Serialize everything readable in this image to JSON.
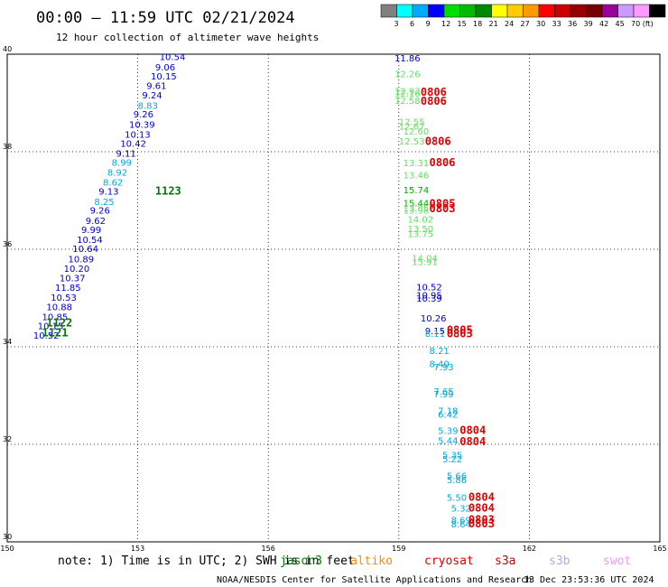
{
  "title": "00:00 — 11:59 UTC 02/21/2024",
  "subtitle": "12 hour collection of altimeter wave heights",
  "credit": "NOAA/NESDIS Center for Satellite Applications and Research",
  "generated": "13 Dec 23:53:36 UTC 2024",
  "note": "note: 1) Time is in UTC; 2) SWH is in feet",
  "satellites": [
    {
      "name": "jason3",
      "color": "#007700"
    },
    {
      "name": "altiko",
      "color": "#ff8800"
    },
    {
      "name": "cryosat",
      "color": "#dd0000"
    },
    {
      "name": "s3a",
      "color": "#cc0000"
    },
    {
      "name": "s3b",
      "color": "#b0a8ee"
    },
    {
      "name": "swot",
      "color": "#ee99ee"
    }
  ],
  "colorbar": {
    "colors": [
      "#808080",
      "#00ffff",
      "#00aaff",
      "#0000ff",
      "#00dd00",
      "#00bb00",
      "#008800",
      "#ffff00",
      "#ffcc00",
      "#ff9900",
      "#ff0000",
      "#cc0000",
      "#990000",
      "#770000",
      "#990099",
      "#cc99ff",
      "#ff99ff",
      "#000000"
    ],
    "labels": [
      "3",
      "6",
      "9",
      "12",
      "15",
      "18",
      "21",
      "24",
      "27",
      "30",
      "33",
      "36",
      "39",
      "42",
      "45",
      "70 (ft)"
    ]
  },
  "chart_data": {
    "type": "scatter",
    "title": "00:00 — 11:59 UTC 02/21/2024",
    "subtitle": "12 hour collection of altimeter wave heights",
    "xlim": [
      150,
      165
    ],
    "ylim": [
      30,
      40
    ],
    "xticks": [
      "150",
      "153",
      "156",
      "159",
      "162",
      "165"
    ],
    "yticks": [
      "30",
      "32",
      "34",
      "36",
      "38",
      "40"
    ],
    "grid": true,
    "points": [
      {
        "lon": 153.5,
        "lat": 39.88,
        "v": "10.54",
        "c": "#0000cc"
      },
      {
        "lon": 153.4,
        "lat": 39.67,
        "v": "9.06",
        "c": "#0000cc"
      },
      {
        "lon": 153.3,
        "lat": 39.48,
        "v": "10.15",
        "c": "#0000cc"
      },
      {
        "lon": 153.2,
        "lat": 39.29,
        "v": "9.61",
        "c": "#0000cc"
      },
      {
        "lon": 153.1,
        "lat": 39.09,
        "v": "9.24",
        "c": "#0000cc"
      },
      {
        "lon": 153.0,
        "lat": 38.88,
        "v": "8.83",
        "c": "#00aadd"
      },
      {
        "lon": 152.9,
        "lat": 38.7,
        "v": "9.26",
        "c": "#0000cc"
      },
      {
        "lon": 152.8,
        "lat": 38.49,
        "v": "10.39",
        "c": "#0000cc"
      },
      {
        "lon": 152.7,
        "lat": 38.29,
        "v": "10.13",
        "c": "#0000cc"
      },
      {
        "lon": 152.6,
        "lat": 38.1,
        "v": "10.42",
        "c": "#0000cc"
      },
      {
        "lon": 152.5,
        "lat": 37.9,
        "v": "9.11",
        "c": "#0000cc"
      },
      {
        "lon": 152.4,
        "lat": 37.71,
        "v": "8.99",
        "c": "#00aadd"
      },
      {
        "lon": 152.3,
        "lat": 37.51,
        "v": "8.92",
        "c": "#00aadd"
      },
      {
        "lon": 152.2,
        "lat": 37.31,
        "v": "8.62",
        "c": "#00aadd"
      },
      {
        "lon": 152.1,
        "lat": 37.12,
        "v": "9.13",
        "c": "#0000cc"
      },
      {
        "lon": 152.0,
        "lat": 36.91,
        "v": "8.25",
        "c": "#00aadd"
      },
      {
        "lon": 151.9,
        "lat": 36.73,
        "v": "9.26",
        "c": "#0000cc"
      },
      {
        "lon": 151.8,
        "lat": 36.52,
        "v": "9.62",
        "c": "#0000cc"
      },
      {
        "lon": 151.7,
        "lat": 36.33,
        "v": "9.99",
        "c": "#0000cc"
      },
      {
        "lon": 151.6,
        "lat": 36.13,
        "v": "10.54",
        "c": "#0000cc"
      },
      {
        "lon": 151.5,
        "lat": 35.94,
        "v": "10.64",
        "c": "#0000cc"
      },
      {
        "lon": 151.4,
        "lat": 35.73,
        "v": "10.89",
        "c": "#0000cc"
      },
      {
        "lon": 151.3,
        "lat": 35.54,
        "v": "10.20",
        "c": "#0000cc"
      },
      {
        "lon": 151.2,
        "lat": 35.34,
        "v": "10.37",
        "c": "#0000cc"
      },
      {
        "lon": 151.1,
        "lat": 35.15,
        "v": "11.85",
        "c": "#0000cc"
      },
      {
        "lon": 151.0,
        "lat": 34.94,
        "v": "10.53",
        "c": "#0000cc"
      },
      {
        "lon": 150.9,
        "lat": 34.75,
        "v": "10.88",
        "c": "#0000cc"
      },
      {
        "lon": 150.8,
        "lat": 34.55,
        "v": "10.85",
        "c": "#0000cc"
      },
      {
        "lon": 150.7,
        "lat": 34.36,
        "v": "10.15",
        "c": "#0000cc"
      },
      {
        "lon": 150.6,
        "lat": 34.17,
        "v": "10.52",
        "c": "#0000cc"
      },
      {
        "lon": 158.9,
        "lat": 39.85,
        "v": "11.86",
        "c": "#0000cc"
      },
      {
        "lon": 158.9,
        "lat": 39.53,
        "v": "12.26",
        "c": "#66dd66"
      },
      {
        "lon": 158.9,
        "lat": 39.18,
        "v": "12.93",
        "c": "#66dd66"
      },
      {
        "lon": 158.9,
        "lat": 39.13,
        "v": "12.16",
        "c": "#66dd66"
      },
      {
        "lon": 158.9,
        "lat": 38.98,
        "v": "12.58",
        "c": "#66dd66"
      },
      {
        "lon": 159.0,
        "lat": 38.55,
        "v": "12.55",
        "c": "#66dd66"
      },
      {
        "lon": 159.0,
        "lat": 38.45,
        "v": "12.67",
        "c": "#66dd66"
      },
      {
        "lon": 159.1,
        "lat": 38.35,
        "v": "12.60",
        "c": "#66dd66"
      },
      {
        "lon": 159.0,
        "lat": 38.15,
        "v": "12.53",
        "c": "#66dd66"
      },
      {
        "lon": 159.1,
        "lat": 37.7,
        "v": "13.31",
        "c": "#66dd66"
      },
      {
        "lon": 159.1,
        "lat": 37.45,
        "v": "13.46",
        "c": "#66dd66"
      },
      {
        "lon": 159.1,
        "lat": 37.15,
        "v": "15.74",
        "c": "#00aa00"
      },
      {
        "lon": 159.1,
        "lat": 36.88,
        "v": "15.44",
        "c": "#00aa00"
      },
      {
        "lon": 159.1,
        "lat": 36.78,
        "v": "13.85",
        "c": "#66dd66"
      },
      {
        "lon": 159.1,
        "lat": 36.73,
        "v": "13.98",
        "c": "#66dd66"
      },
      {
        "lon": 159.2,
        "lat": 36.55,
        "v": "14.02",
        "c": "#66dd66"
      },
      {
        "lon": 159.2,
        "lat": 36.35,
        "v": "13.50",
        "c": "#66dd66"
      },
      {
        "lon": 159.2,
        "lat": 36.25,
        "v": "13.75",
        "c": "#66dd66"
      },
      {
        "lon": 159.3,
        "lat": 35.75,
        "v": "14.04",
        "c": "#66dd66"
      },
      {
        "lon": 159.3,
        "lat": 35.68,
        "v": "15.91",
        "c": "#66dd66"
      },
      {
        "lon": 159.4,
        "lat": 35.16,
        "v": "10.52",
        "c": "#0000cc"
      },
      {
        "lon": 159.4,
        "lat": 34.99,
        "v": "10.95",
        "c": "#0000cc"
      },
      {
        "lon": 159.4,
        "lat": 34.93,
        "v": "10.39",
        "c": "#0000cc"
      },
      {
        "lon": 159.5,
        "lat": 34.52,
        "v": "10.26",
        "c": "#0000cc"
      },
      {
        "lon": 159.6,
        "lat": 34.26,
        "v": "9.15",
        "c": "#0000cc"
      },
      {
        "lon": 159.6,
        "lat": 34.2,
        "v": "8.11",
        "c": "#00aadd"
      },
      {
        "lon": 159.7,
        "lat": 33.85,
        "v": "8.21",
        "c": "#00aadd"
      },
      {
        "lon": 159.7,
        "lat": 33.58,
        "v": "8.40",
        "c": "#00aadd"
      },
      {
        "lon": 159.8,
        "lat": 33.52,
        "v": "7.93",
        "c": "#00aadd"
      },
      {
        "lon": 159.8,
        "lat": 33.02,
        "v": "7.65",
        "c": "#00aadd"
      },
      {
        "lon": 159.8,
        "lat": 32.96,
        "v": "7.99",
        "c": "#00aadd"
      },
      {
        "lon": 159.9,
        "lat": 32.62,
        "v": "7.18",
        "c": "#00aadd"
      },
      {
        "lon": 159.9,
        "lat": 32.55,
        "v": "6.42",
        "c": "#00aadd"
      },
      {
        "lon": 159.9,
        "lat": 32.21,
        "v": "5.39",
        "c": "#00aadd"
      },
      {
        "lon": 159.9,
        "lat": 32.01,
        "v": "5.44",
        "c": "#00aadd"
      },
      {
        "lon": 160.0,
        "lat": 31.71,
        "v": "5.35",
        "c": "#00aadd"
      },
      {
        "lon": 160.0,
        "lat": 31.63,
        "v": "5.22",
        "c": "#00aadd"
      },
      {
        "lon": 160.1,
        "lat": 31.29,
        "v": "5.66",
        "c": "#00aadd"
      },
      {
        "lon": 160.1,
        "lat": 31.2,
        "v": "5.86",
        "c": "#00aadd"
      },
      {
        "lon": 160.1,
        "lat": 30.84,
        "v": "5.50",
        "c": "#00aadd"
      },
      {
        "lon": 160.2,
        "lat": 30.62,
        "v": "5.32",
        "c": "#00aadd"
      },
      {
        "lon": 160.2,
        "lat": 30.38,
        "v": "8.69",
        "c": "#00aadd"
      },
      {
        "lon": 160.2,
        "lat": 30.3,
        "v": "8.64",
        "c": "#00aadd"
      }
    ],
    "passes": [
      {
        "lon": 153.4,
        "lat": 37.12,
        "v": "1123",
        "c": "#007700"
      },
      {
        "lon": 150.9,
        "lat": 34.42,
        "v": "1122",
        "c": "#007700"
      },
      {
        "lon": 150.8,
        "lat": 34.21,
        "v": "1121",
        "c": "#007700"
      },
      {
        "lon": 159.5,
        "lat": 39.15,
        "v": "0806",
        "c": "#dd0000"
      },
      {
        "lon": 159.5,
        "lat": 38.96,
        "v": "0806",
        "c": "#dd0000"
      },
      {
        "lon": 159.6,
        "lat": 38.14,
        "v": "0806",
        "c": "#dd0000"
      },
      {
        "lon": 159.7,
        "lat": 37.7,
        "v": "0806",
        "c": "#dd0000"
      },
      {
        "lon": 159.7,
        "lat": 36.86,
        "v": "0805",
        "c": "#dd0000"
      },
      {
        "lon": 159.7,
        "lat": 36.76,
        "v": "0803",
        "c": "#dd0000"
      },
      {
        "lon": 160.1,
        "lat": 34.27,
        "v": "0805",
        "c": "#dd0000"
      },
      {
        "lon": 160.1,
        "lat": 34.19,
        "v": "0803",
        "c": "#dd0000"
      },
      {
        "lon": 160.4,
        "lat": 32.21,
        "v": "0804",
        "c": "#dd0000"
      },
      {
        "lon": 160.4,
        "lat": 31.98,
        "v": "0804",
        "c": "#dd0000"
      },
      {
        "lon": 160.6,
        "lat": 30.84,
        "v": "0804",
        "c": "#dd0000"
      },
      {
        "lon": 160.6,
        "lat": 30.62,
        "v": "0804",
        "c": "#dd0000"
      },
      {
        "lon": 160.6,
        "lat": 30.38,
        "v": "0803",
        "c": "#dd0000"
      },
      {
        "lon": 160.6,
        "lat": 30.3,
        "v": "0803",
        "c": "#dd0000"
      }
    ]
  }
}
